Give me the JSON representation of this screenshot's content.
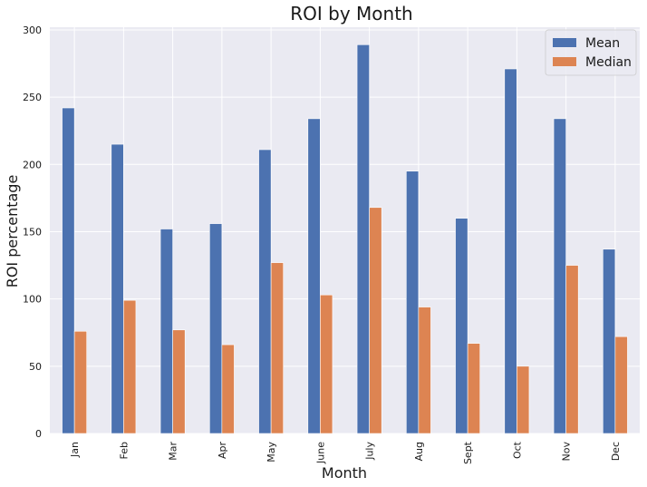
{
  "chart_data": {
    "type": "bar",
    "title": "ROI by Month",
    "xlabel": "Month",
    "ylabel": "ROI percentage",
    "categories": [
      "Jan",
      "Feb",
      "Mar",
      "Apr",
      "May",
      "June",
      "July",
      "Aug",
      "Sept",
      "Oct",
      "Nov",
      "Dec"
    ],
    "series": [
      {
        "name": "Mean",
        "color": "#4c72b0",
        "values": [
          242,
          215,
          152,
          156,
          211,
          234,
          289,
          195,
          160,
          271,
          234,
          137
        ]
      },
      {
        "name": "Median",
        "color": "#dd8452",
        "values": [
          76,
          99,
          77,
          66,
          127,
          103,
          168,
          94,
          67,
          50,
          125,
          72
        ]
      }
    ],
    "ylim": [
      0,
      302
    ],
    "yticks": [
      0,
      50,
      100,
      150,
      200,
      250,
      300
    ],
    "grid": true,
    "legend_position": "top-right",
    "background": "#eaeaf2"
  }
}
